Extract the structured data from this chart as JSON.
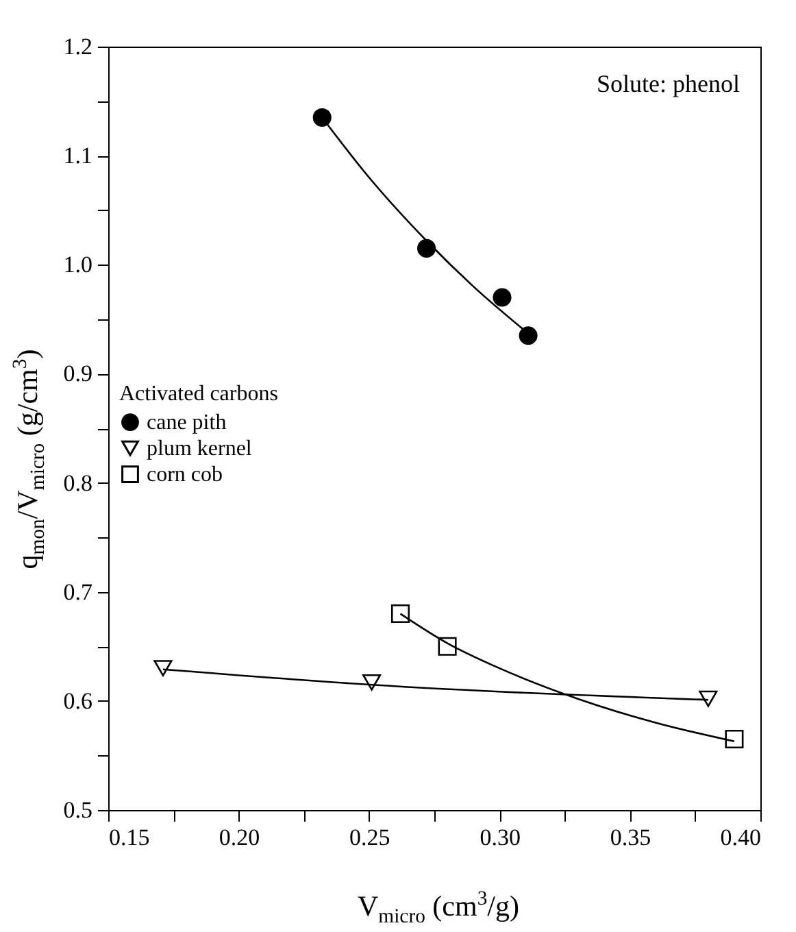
{
  "chart_data": {
    "type": "scatter",
    "xlabel": "V$_{micro}$  (cm$^{3}$/g)",
    "ylabel": "q$_{mon}$/V$_{micro}$  (g/cm$^{3}$)",
    "legend_title": "Activated carbons",
    "annotations": [
      "Solute: phenol"
    ],
    "xlim": [
      0.15,
      0.4
    ],
    "xticks": [
      {
        "value": 0.15,
        "label": "0.15"
      },
      {
        "value": 0.175,
        "label": null
      },
      {
        "value": 0.2,
        "label": "0.20"
      },
      {
        "value": 0.225,
        "label": null
      },
      {
        "value": 0.25,
        "label": "0.25"
      },
      {
        "value": 0.275,
        "label": null
      },
      {
        "value": 0.3,
        "label": "0.30"
      },
      {
        "value": 0.325,
        "label": null
      },
      {
        "value": 0.35,
        "label": "0.35"
      },
      {
        "value": 0.375,
        "label": null
      },
      {
        "value": 0.4,
        "label": "0.40"
      }
    ],
    "ylim": [
      0.5,
      1.2
    ],
    "yticks": [
      0.5,
      {
        "value": 0.55,
        "label": null
      },
      0.6,
      {
        "value": 0.65,
        "label": null
      },
      0.7,
      {
        "value": 0.75,
        "label": null
      },
      0.8,
      {
        "value": 0.85,
        "label": null
      },
      0.9,
      {
        "value": 0.95,
        "label": null
      },
      {
        "value": 1.0,
        "label": "1.0"
      },
      {
        "value": 1.05,
        "label": null
      },
      1.1,
      {
        "value": 1.15,
        "label": null
      },
      1.2
    ],
    "grid": false,
    "legend": "left",
    "series": [
      {
        "name": "cane pith",
        "color": "#000000",
        "marker": "circle",
        "x": [
          0.232,
          0.272,
          0.301,
          0.311
        ],
        "values": [
          1.135,
          1.015,
          0.97,
          0.935
        ]
      },
      {
        "name": "plum kernel",
        "color": "#000000",
        "marker": "triangle",
        "x": [
          0.171,
          0.251,
          0.38
        ],
        "values": [
          0.63,
          0.617,
          0.602
        ]
      },
      {
        "name": "corn cob",
        "color": "#000000",
        "marker": "square",
        "x": [
          0.262,
          0.28,
          0.39
        ],
        "values": [
          0.68,
          0.65,
          0.565
        ]
      },
      {
        "type": "line",
        "color": "#000000",
        "x": [
          0.232,
          0.25,
          0.272,
          0.29,
          0.311
        ],
        "values": [
          1.135,
          1.08,
          1.022,
          0.98,
          0.937
        ]
      },
      {
        "type": "line",
        "color": "#000000",
        "x": [
          0.171,
          0.25,
          0.38
        ],
        "values": [
          0.629,
          0.615,
          0.601
        ]
      },
      {
        "type": "line",
        "color": "#000000",
        "x": [
          0.262,
          0.28,
          0.3,
          0.33,
          0.36,
          0.39
        ],
        "values": [
          0.68,
          0.653,
          0.63,
          0.602,
          0.58,
          0.563
        ]
      }
    ]
  }
}
